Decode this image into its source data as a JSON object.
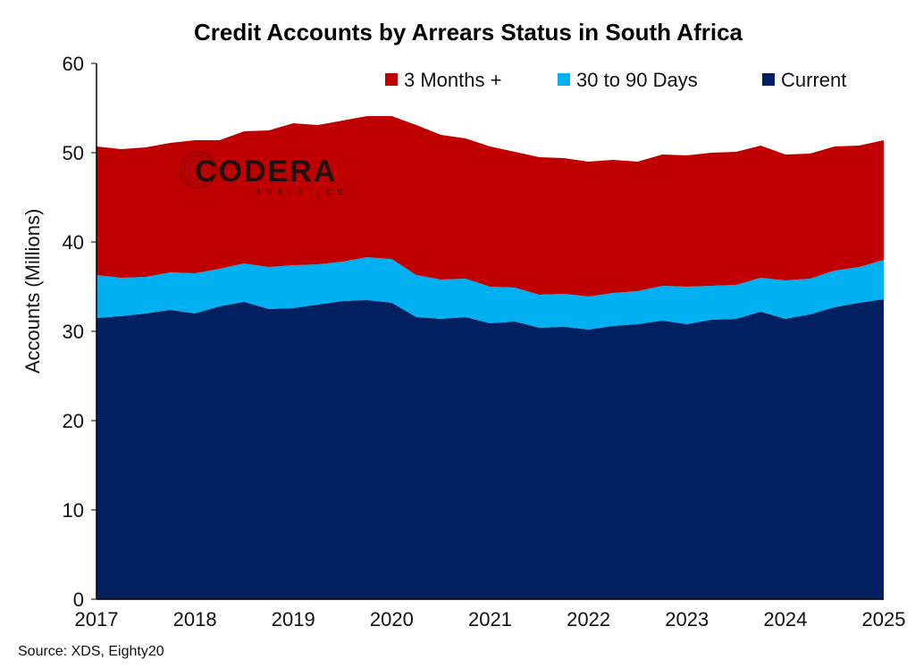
{
  "chart_data": {
    "type": "area",
    "stacked": true,
    "title": "Credit Accounts by Arrears Status in South Africa",
    "ylabel": "Accounts (Millions)",
    "xlabel": "",
    "xlim": [
      2017,
      2025
    ],
    "ylim": [
      0,
      60
    ],
    "x_ticks": [
      "2017",
      "2018",
      "2019",
      "2020",
      "2021",
      "2022",
      "2023",
      "2024",
      "2025"
    ],
    "y_ticks": [
      "0",
      "10",
      "20",
      "30",
      "40",
      "50",
      "60"
    ],
    "legend_position": "top-right",
    "grid": false,
    "x": [
      2017.0,
      2017.25,
      2017.5,
      2017.75,
      2018.0,
      2018.25,
      2018.5,
      2018.75,
      2019.0,
      2019.25,
      2019.5,
      2019.75,
      2020.0,
      2020.25,
      2020.5,
      2020.75,
      2021.0,
      2021.25,
      2021.5,
      2021.75,
      2022.0,
      2022.25,
      2022.5,
      2022.75,
      2023.0,
      2023.25,
      2023.5,
      2023.75,
      2024.0,
      2024.25,
      2024.5,
      2024.75,
      2025.0
    ],
    "series": [
      {
        "name": "Current",
        "color": "#002060",
        "values": [
          31.5,
          31.7,
          32.0,
          32.4,
          32.0,
          32.8,
          33.3,
          32.5,
          32.6,
          33.0,
          33.4,
          33.5,
          33.2,
          31.6,
          31.4,
          31.6,
          30.9,
          31.1,
          30.4,
          30.5,
          30.2,
          30.6,
          30.8,
          31.2,
          30.8,
          31.3,
          31.4,
          32.2,
          31.4,
          31.9,
          32.7,
          33.2,
          33.6
        ]
      },
      {
        "name": "30 to 90 Days",
        "color": "#00B0F0",
        "values": [
          4.8,
          4.3,
          4.1,
          4.2,
          4.5,
          4.2,
          4.3,
          4.7,
          4.8,
          4.5,
          4.4,
          4.8,
          4.9,
          4.7,
          4.4,
          4.3,
          4.1,
          3.8,
          3.7,
          3.7,
          3.7,
          3.7,
          3.7,
          3.9,
          4.2,
          3.8,
          3.8,
          3.8,
          4.3,
          4.0,
          4.1,
          4.0,
          4.4
        ]
      },
      {
        "name": "3 Months +",
        "color": "#C00000",
        "values": [
          14.4,
          14.4,
          14.5,
          14.5,
          14.9,
          14.4,
          14.8,
          15.3,
          15.9,
          15.6,
          15.8,
          15.8,
          16.0,
          16.8,
          16.2,
          15.7,
          15.7,
          15.2,
          15.4,
          15.2,
          15.1,
          14.9,
          14.5,
          14.7,
          14.7,
          14.9,
          14.9,
          14.8,
          14.1,
          14.0,
          13.9,
          13.6,
          13.4
        ]
      }
    ],
    "legend_order": [
      "3 Months +",
      "30 to 90 Days",
      "Current"
    ]
  },
  "watermark": {
    "text": "CODERA",
    "subtext": "ANALYTICS"
  },
  "source_note": "Source: XDS, Eighty20"
}
